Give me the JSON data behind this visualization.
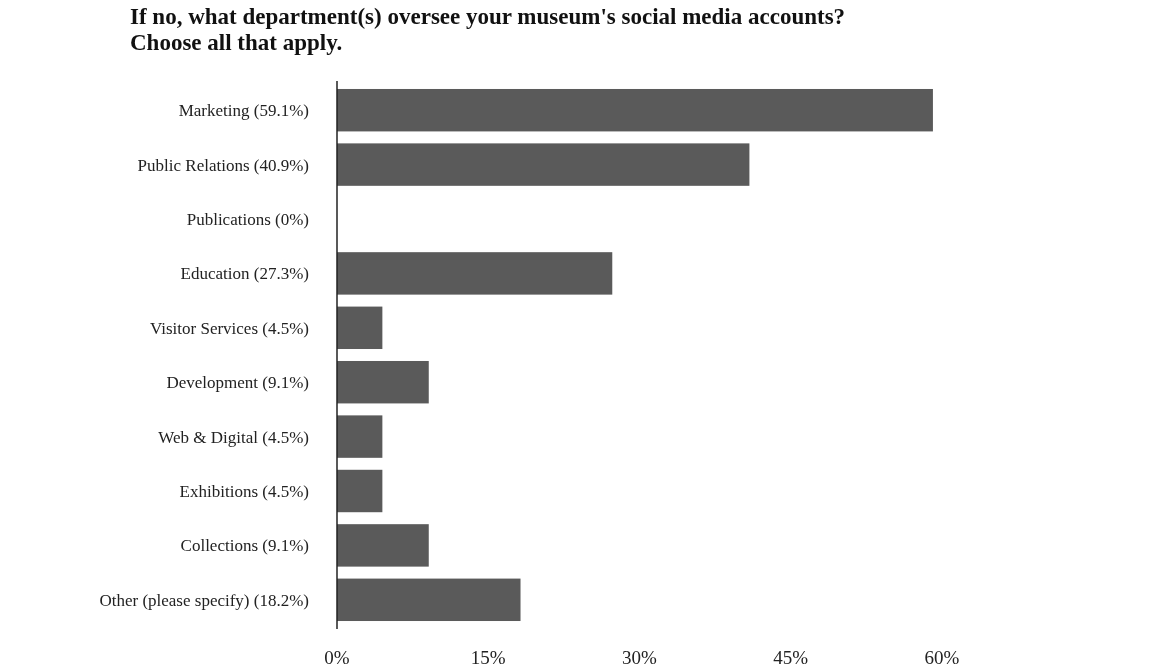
{
  "chart_data": {
    "type": "bar",
    "orientation": "horizontal",
    "title": "If no, what department(s) oversee your museum's social media accounts?\nChoose all that apply.",
    "categories": [
      "Marketing (59.1%)",
      "Public Relations (40.9%)",
      "Publications (0%)",
      "Education (27.3%)",
      "Visitor Services (4.5%)",
      "Development (9.1%)",
      "Web & Digital (4.5%)",
      "Exhibitions (4.5%)",
      "Collections (9.1%)",
      "Other (please specify) (18.2%)"
    ],
    "values": [
      59.1,
      40.9,
      0,
      27.3,
      4.5,
      9.1,
      4.5,
      4.5,
      9.1,
      18.2
    ],
    "color": "#5a5a5a",
    "xlim": [
      0,
      60
    ],
    "xticks": [
      {
        "value": 0,
        "label": "0%"
      },
      {
        "value": 15,
        "label": "15%"
      },
      {
        "value": 30,
        "label": "30%"
      },
      {
        "value": 45,
        "label": "45%"
      },
      {
        "value": 60,
        "label": "60%"
      }
    ],
    "grid": false
  }
}
